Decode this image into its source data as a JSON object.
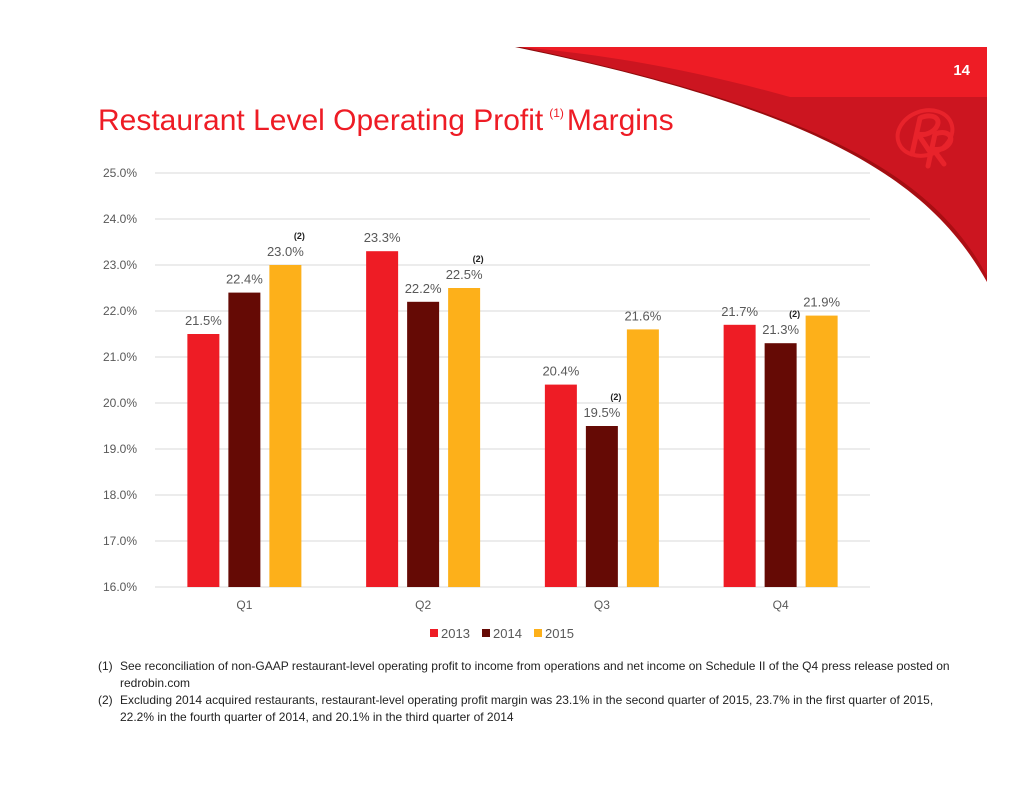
{
  "slide_number": "14",
  "title": {
    "text": "Restaurant Level Operating Profit",
    "superscript": "(1)",
    "suffix": "Margins"
  },
  "logo": {
    "text": "RR",
    "color": "#ee1c25"
  },
  "colors": {
    "2013": "#ee1c25",
    "2014": "#650a05",
    "2015": "#fdb01a",
    "banner": "#ee1c25",
    "banner_dark": "#cc1520"
  },
  "chart_data": {
    "type": "bar",
    "categories": [
      "Q1",
      "Q2",
      "Q3",
      "Q4"
    ],
    "series": [
      {
        "name": "2013",
        "values": [
          21.5,
          23.3,
          20.4,
          21.7
        ]
      },
      {
        "name": "2014",
        "values": [
          22.4,
          22.2,
          19.5,
          21.3
        ]
      },
      {
        "name": "2015",
        "values": [
          23.0,
          22.5,
          21.6,
          21.9
        ]
      }
    ],
    "data_labels": [
      [
        "21.5%",
        "22.4%",
        "23.0%"
      ],
      [
        "23.3%",
        "22.2%",
        "22.5%"
      ],
      [
        "20.4%",
        "19.5%",
        "21.6%"
      ],
      [
        "21.7%",
        "21.3%",
        "21.9%"
      ]
    ],
    "annotations": [
      {
        "category": "Q1",
        "series": "2015",
        "text": "(2)"
      },
      {
        "category": "Q2",
        "series": "2015",
        "text": "(2)"
      },
      {
        "category": "Q3",
        "series": "2014",
        "text": "(2)"
      },
      {
        "category": "Q4",
        "series": "2014",
        "text": "(2)"
      }
    ],
    "yticks": [
      "16.0%",
      "17.0%",
      "18.0%",
      "19.0%",
      "20.0%",
      "21.0%",
      "22.0%",
      "23.0%",
      "24.0%",
      "25.0%"
    ],
    "ylim": [
      16,
      25
    ],
    "grid": true,
    "legend": "bottom",
    "xlabel": "",
    "ylabel": ""
  },
  "footnotes": [
    {
      "num": "(1)",
      "text": "See reconciliation of non-GAAP restaurant-level operating profit to income from operations and net income on Schedule II of the Q4 press release posted on redrobin.com"
    },
    {
      "num": "(2)",
      "text": "Excluding 2014 acquired restaurants, restaurant-level operating profit margin was 23.1% in the second quarter of 2015, 23.7% in the first quarter of 2015, 22.2% in the fourth quarter of 2014, and 20.1% in the third quarter of 2014"
    }
  ]
}
